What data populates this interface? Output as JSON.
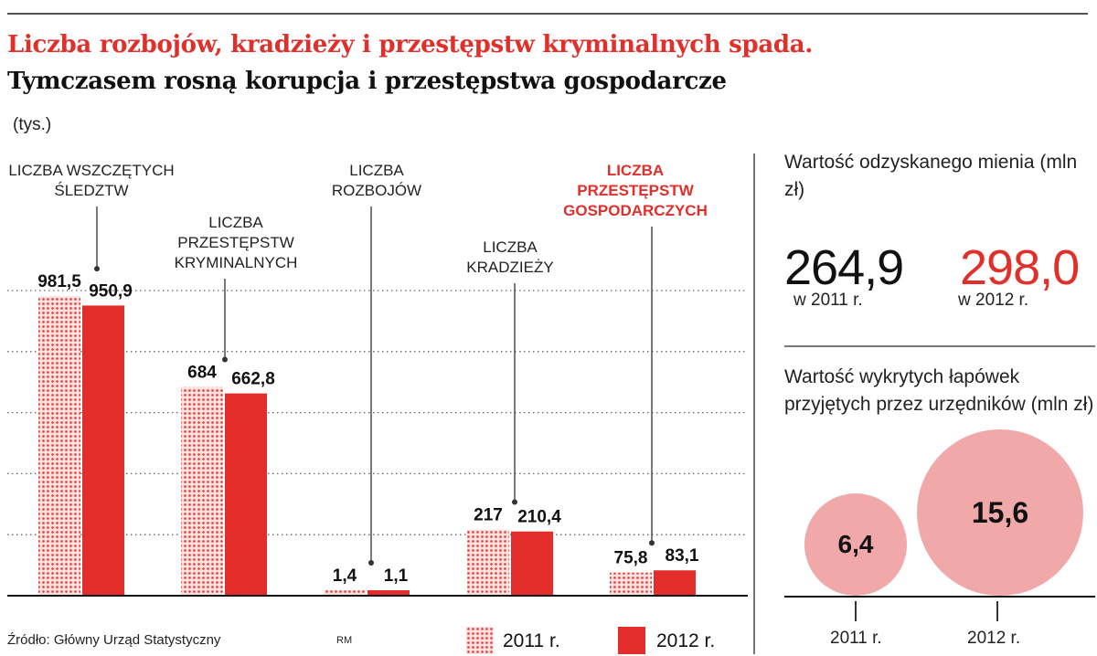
{
  "header": {
    "title": "Liczba rozbojów, kradzieży i przestępstw kryminalnych spada.",
    "subtitle": "Tymczasem rosną korupcja i przestępstwa gospodarcze",
    "unit": "(tys.)"
  },
  "chart_data": [
    {
      "type": "bar",
      "categories": [
        "LICZBA WSZCZĘTYCH ŚLEDZTW",
        "LICZBA PRZESTĘPSTW KRYMINALNYCH",
        "LICZBA ROZBOJÓW",
        "LICZBA KRADZIEŻY",
        "LICZBA PRZESTĘPSTW GOSPODARCZYCH"
      ],
      "category_lines": [
        [
          "LICZBA WSZCZĘTYCH",
          "ŚLEDZTW"
        ],
        [
          "LICZBA",
          "PRZESTĘPSTW",
          "KRYMINALNYCH"
        ],
        [
          "LICZBA",
          "ROZBOJÓW"
        ],
        [
          "LICZBA",
          "KRADZIEŻY"
        ],
        [
          "LICZBA",
          "PRZESTĘPSTW",
          "GOSPODARCZYCH"
        ]
      ],
      "highlighted_category": "LICZBA PRZESTĘPSTW GOSPODARCZYCH",
      "series": [
        {
          "name": "2011 r.",
          "values": [
            981.5,
            684,
            1.4,
            217,
            75.8
          ],
          "labels": [
            "981,5",
            "684",
            "1,4",
            "217",
            "75,8"
          ],
          "style": "dotted pattern"
        },
        {
          "name": "2012 r.",
          "values": [
            950.9,
            662.8,
            1.1,
            210.4,
            83.1
          ],
          "labels": [
            "950,9",
            "662,8",
            "1,1",
            "210,4",
            "83,1"
          ],
          "style": "solid"
        }
      ],
      "ylim": [
        0,
        1000
      ],
      "grid": "dotted horizontal",
      "legend": "bottom"
    },
    {
      "type": "bubble",
      "title": "Wartość wykrytych łapówek przyjętych przez urzędników (mln zł)",
      "categories": [
        "2011 r.",
        "2012 r."
      ],
      "values": [
        6.4,
        15.6
      ],
      "labels": [
        "6,4",
        "15,6"
      ]
    }
  ],
  "recovered": {
    "title": "Wartość odzyskanego mienia (mln zł)",
    "value_2011": "264,9",
    "label_2011": "w 2011 r.",
    "value_2012": "298,0",
    "label_2012": "w 2012 r."
  },
  "bribes": {
    "title": "Wartość wykrytych łapówek przyjętych przez urzędników (mln zł)",
    "label_2011": "6,4",
    "label_2012": "15,6",
    "year_2011": "2011 r.",
    "year_2012": "2012 r."
  },
  "legend": {
    "label_2011": "2011 r.",
    "label_2012": "2012 r."
  },
  "footer": {
    "source": "Źródło: Główny Urząd Statystyczny",
    "initials": "RM"
  },
  "colors": {
    "accent": "#e0302b",
    "bar_2012": "#e32d2a",
    "bar_2011_dot": "#e8443f",
    "bar_2011_bg": "#fbe1df",
    "bubble": "#f0a9a8"
  }
}
